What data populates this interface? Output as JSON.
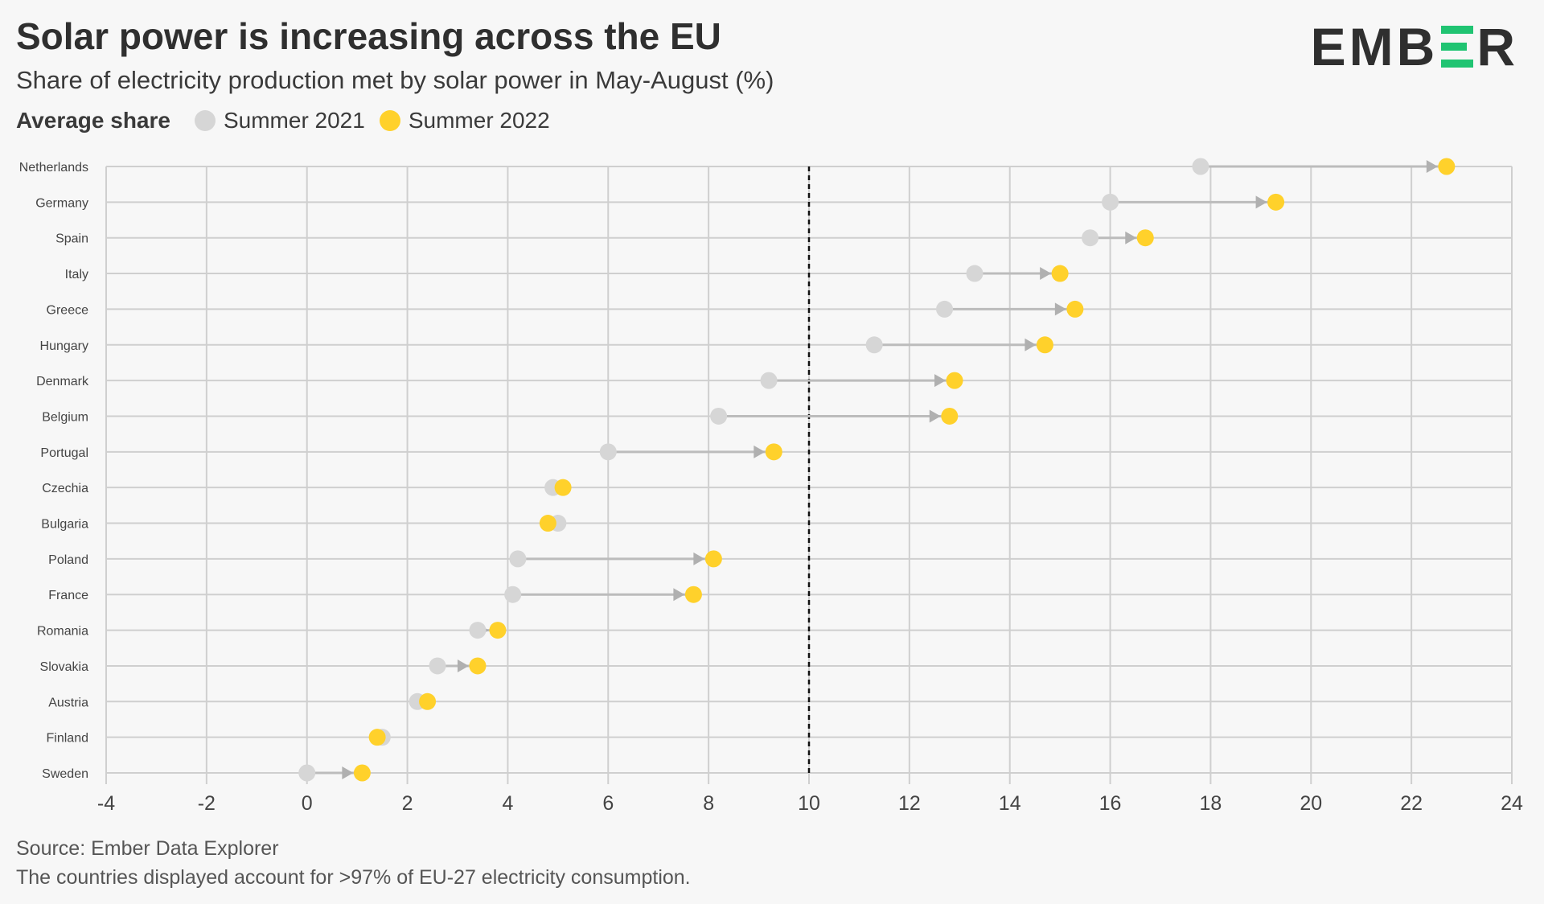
{
  "header": {
    "title": "Solar power is increasing across the EU",
    "subtitle": "Share of electricity production met by solar power in May-August (%)"
  },
  "legend": {
    "title": "Average share",
    "items": [
      {
        "label": "Summer 2021",
        "color": "#d6d6d6"
      },
      {
        "label": "Summer 2022",
        "color": "#ffd12b"
      }
    ]
  },
  "logo": {
    "text_left": "EMB",
    "text_right": "R",
    "accent_color": "#20c472"
  },
  "footer": {
    "source": "Source: Ember Data Explorer",
    "note": "The countries displayed account for >97% of EU-27 electricity consumption."
  },
  "chart_data": {
    "type": "dumbbell",
    "xlim": [
      -4,
      24
    ],
    "xticks": [
      "-4",
      "-2",
      "0",
      "2",
      "4",
      "6",
      "8",
      "10",
      "12",
      "14",
      "16",
      "18",
      "20",
      "22",
      "24"
    ],
    "reference_line": 10,
    "grid": true,
    "categories": [
      "Netherlands",
      "Germany",
      "Spain",
      "Italy",
      "Greece",
      "Hungary",
      "Denmark",
      "Belgium",
      "Portugal",
      "Czechia",
      "Bulgaria",
      "Poland",
      "France",
      "Romania",
      "Slovakia",
      "Austria",
      "Finland",
      "Sweden"
    ],
    "series": [
      {
        "name": "Summer 2021",
        "color": "#d6d6d6",
        "values": [
          17.8,
          16.0,
          15.6,
          13.3,
          12.7,
          11.3,
          9.2,
          8.2,
          6.0,
          4.9,
          5.0,
          4.2,
          4.1,
          3.4,
          2.6,
          2.2,
          1.5,
          0.0
        ]
      },
      {
        "name": "Summer 2022",
        "color": "#ffd12b",
        "values": [
          22.7,
          19.3,
          16.7,
          15.0,
          15.3,
          14.7,
          12.9,
          12.8,
          9.3,
          5.1,
          4.8,
          8.1,
          7.7,
          3.8,
          3.4,
          2.4,
          1.4,
          1.1
        ]
      }
    ]
  }
}
